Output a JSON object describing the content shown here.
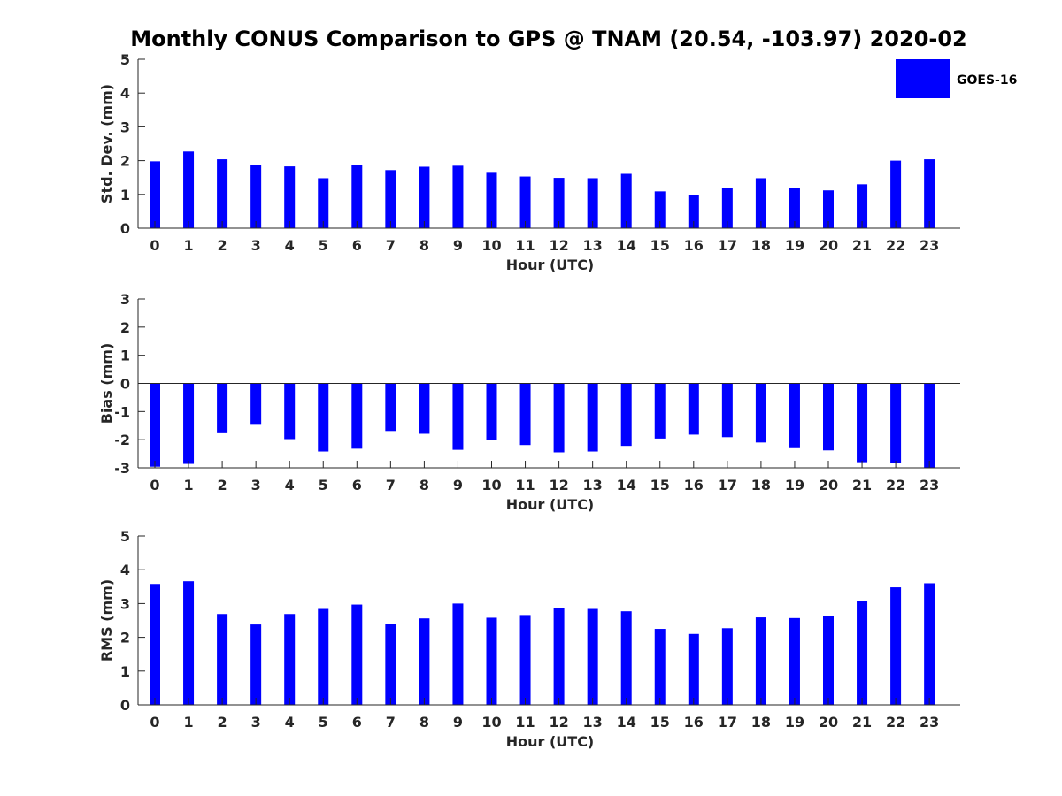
{
  "title": "Monthly CONUS Comparison to GPS @ TNAM (20.54, -103.97) 2020-02",
  "legend": {
    "label": "GOES-16",
    "color": "#0000ff"
  },
  "chart_data": [
    {
      "type": "bar",
      "ylabel": "Std. Dev. (mm)",
      "xlabel": "Hour (UTC)",
      "ylim": [
        0,
        5
      ],
      "yticks": [
        0,
        1,
        2,
        3,
        4,
        5
      ],
      "categories": [
        "0",
        "1",
        "2",
        "3",
        "4",
        "5",
        "6",
        "7",
        "8",
        "9",
        "10",
        "11",
        "12",
        "13",
        "14",
        "15",
        "16",
        "17",
        "18",
        "19",
        "20",
        "21",
        "22",
        "23"
      ],
      "series": [
        {
          "name": "GOES-16",
          "values": [
            1.98,
            2.27,
            2.04,
            1.88,
            1.83,
            1.48,
            1.86,
            1.72,
            1.82,
            1.85,
            1.64,
            1.53,
            1.49,
            1.48,
            1.61,
            1.09,
            0.99,
            1.18,
            1.48,
            1.2,
            1.12,
            1.3,
            2.0,
            2.04
          ]
        }
      ],
      "grid": false
    },
    {
      "type": "bar",
      "ylabel": "Bias (mm)",
      "xlabel": "Hour (UTC)",
      "ylim": [
        -3,
        3
      ],
      "yticks": [
        -3,
        -2,
        -1,
        0,
        1,
        2,
        3
      ],
      "categories": [
        "0",
        "1",
        "2",
        "3",
        "4",
        "5",
        "6",
        "7",
        "8",
        "9",
        "10",
        "11",
        "12",
        "13",
        "14",
        "15",
        "16",
        "17",
        "18",
        "19",
        "20",
        "21",
        "22",
        "23"
      ],
      "series": [
        {
          "name": "GOES-16",
          "values": [
            -2.96,
            -2.86,
            -1.77,
            -1.44,
            -1.98,
            -2.42,
            -2.32,
            -1.69,
            -1.79,
            -2.36,
            -2.01,
            -2.19,
            -2.45,
            -2.42,
            -2.22,
            -1.96,
            -1.82,
            -1.91,
            -2.1,
            -2.27,
            -2.38,
            -2.8,
            -2.84,
            -3.0
          ]
        }
      ],
      "grid": false
    },
    {
      "type": "bar",
      "ylabel": "RMS (mm)",
      "xlabel": "Hour (UTC)",
      "ylim": [
        0,
        5
      ],
      "yticks": [
        0,
        1,
        2,
        3,
        4,
        5
      ],
      "categories": [
        "0",
        "1",
        "2",
        "3",
        "4",
        "5",
        "6",
        "7",
        "8",
        "9",
        "10",
        "11",
        "12",
        "13",
        "14",
        "15",
        "16",
        "17",
        "18",
        "19",
        "20",
        "21",
        "22",
        "23"
      ],
      "series": [
        {
          "name": "GOES-16",
          "values": [
            3.58,
            3.66,
            2.69,
            2.38,
            2.69,
            2.84,
            2.97,
            2.4,
            2.56,
            3.0,
            2.58,
            2.66,
            2.87,
            2.84,
            2.77,
            2.25,
            2.1,
            2.27,
            2.59,
            2.57,
            2.64,
            3.08,
            3.48,
            3.6
          ]
        }
      ],
      "grid": false
    }
  ]
}
